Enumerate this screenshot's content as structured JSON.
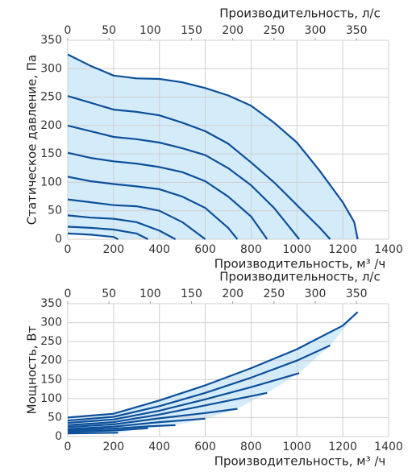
{
  "chart_data": [
    {
      "type": "line",
      "xlabel": "Производительность, м³ /ч",
      "x2label": "Производительность, л/с",
      "ylabel": "Статическое давление, Па",
      "xlim": [
        0,
        1400
      ],
      "xticks": [
        0,
        200,
        400,
        600,
        800,
        1000,
        1200,
        1400
      ],
      "x2lim": [
        0,
        388.89
      ],
      "x2ticks": [
        0,
        50,
        100,
        150,
        200,
        250,
        300,
        350
      ],
      "ylim": [
        0,
        350
      ],
      "yticks": [
        0,
        50,
        100,
        150,
        200,
        250,
        300,
        350
      ],
      "grid": true,
      "color": "#0d4f9a",
      "fill": "#d4ecf9",
      "series": [
        {
          "x": [
            0,
            100,
            200,
            300,
            400,
            500,
            600,
            700,
            800,
            900,
            1000,
            1100,
            1200,
            1250,
            1265
          ],
          "values": [
            325,
            305,
            288,
            283,
            282,
            276,
            266,
            253,
            235,
            205,
            170,
            120,
            65,
            30,
            0
          ]
        },
        {
          "x": [
            0,
            100,
            200,
            300,
            400,
            500,
            600,
            700,
            800,
            900,
            1000,
            1100,
            1145
          ],
          "values": [
            252,
            240,
            228,
            224,
            218,
            205,
            190,
            168,
            135,
            100,
            60,
            20,
            0
          ]
        },
        {
          "x": [
            0,
            100,
            200,
            300,
            400,
            500,
            600,
            700,
            800,
            900,
            950,
            1010
          ],
          "values": [
            200,
            190,
            180,
            176,
            170,
            160,
            148,
            125,
            95,
            55,
            30,
            0
          ]
        },
        {
          "x": [
            0,
            100,
            200,
            300,
            400,
            500,
            600,
            700,
            800,
            870
          ],
          "values": [
            152,
            143,
            137,
            133,
            127,
            118,
            102,
            75,
            40,
            0
          ]
        },
        {
          "x": [
            0,
            100,
            200,
            300,
            400,
            500,
            600,
            700,
            740
          ],
          "values": [
            110,
            102,
            97,
            93,
            88,
            75,
            55,
            20,
            0
          ]
        },
        {
          "x": [
            0,
            100,
            200,
            300,
            400,
            500,
            600
          ],
          "values": [
            70,
            65,
            60,
            58,
            50,
            30,
            0
          ]
        },
        {
          "x": [
            0,
            100,
            200,
            300,
            400,
            470
          ],
          "values": [
            42,
            38,
            36,
            30,
            15,
            0
          ]
        },
        {
          "x": [
            0,
            100,
            200,
            300,
            350
          ],
          "values": [
            22,
            20,
            17,
            10,
            0
          ]
        },
        {
          "x": [
            0,
            100,
            200,
            220
          ],
          "values": [
            10,
            8,
            4,
            0
          ]
        }
      ]
    },
    {
      "type": "line",
      "xlabel": "Производительность, м³ /ч",
      "x2label": "Производительность, л/с",
      "ylabel": "Мощность, Вт",
      "xlim": [
        0,
        1400
      ],
      "xticks": [
        0,
        200,
        400,
        600,
        800,
        1000,
        1200,
        1400
      ],
      "x2lim": [
        0,
        388.89
      ],
      "x2ticks": [
        0,
        50,
        100,
        150,
        200,
        250,
        300,
        350
      ],
      "ylim": [
        0,
        350
      ],
      "yticks": [
        0,
        50,
        100,
        150,
        200,
        250,
        300,
        350
      ],
      "grid": true,
      "color": "#0d4f9a",
      "fill": "#d4ecf9",
      "series": [
        {
          "x": [
            0,
            200,
            400,
            600,
            800,
            1000,
            1200,
            1265
          ],
          "values": [
            50,
            60,
            95,
            135,
            180,
            230,
            292,
            328
          ]
        },
        {
          "x": [
            0,
            200,
            400,
            600,
            800,
            1000,
            1145
          ],
          "values": [
            42,
            52,
            80,
            115,
            155,
            200,
            240
          ]
        },
        {
          "x": [
            0,
            200,
            400,
            600,
            800,
            1010
          ],
          "values": [
            36,
            45,
            68,
            98,
            130,
            167
          ]
        },
        {
          "x": [
            0,
            200,
            400,
            600,
            870
          ],
          "values": [
            30,
            38,
            58,
            82,
            115
          ]
        },
        {
          "x": [
            0,
            200,
            400,
            600,
            740
          ],
          "values": [
            25,
            32,
            48,
            62,
            73
          ]
        },
        {
          "x": [
            0,
            200,
            400,
            600
          ],
          "values": [
            20,
            26,
            38,
            47
          ]
        },
        {
          "x": [
            0,
            200,
            350,
            470
          ],
          "values": [
            16,
            21,
            27,
            30
          ]
        },
        {
          "x": [
            0,
            200,
            350
          ],
          "values": [
            12,
            16,
            22
          ]
        },
        {
          "x": [
            0,
            220
          ],
          "values": [
            8,
            10
          ]
        }
      ]
    }
  ]
}
